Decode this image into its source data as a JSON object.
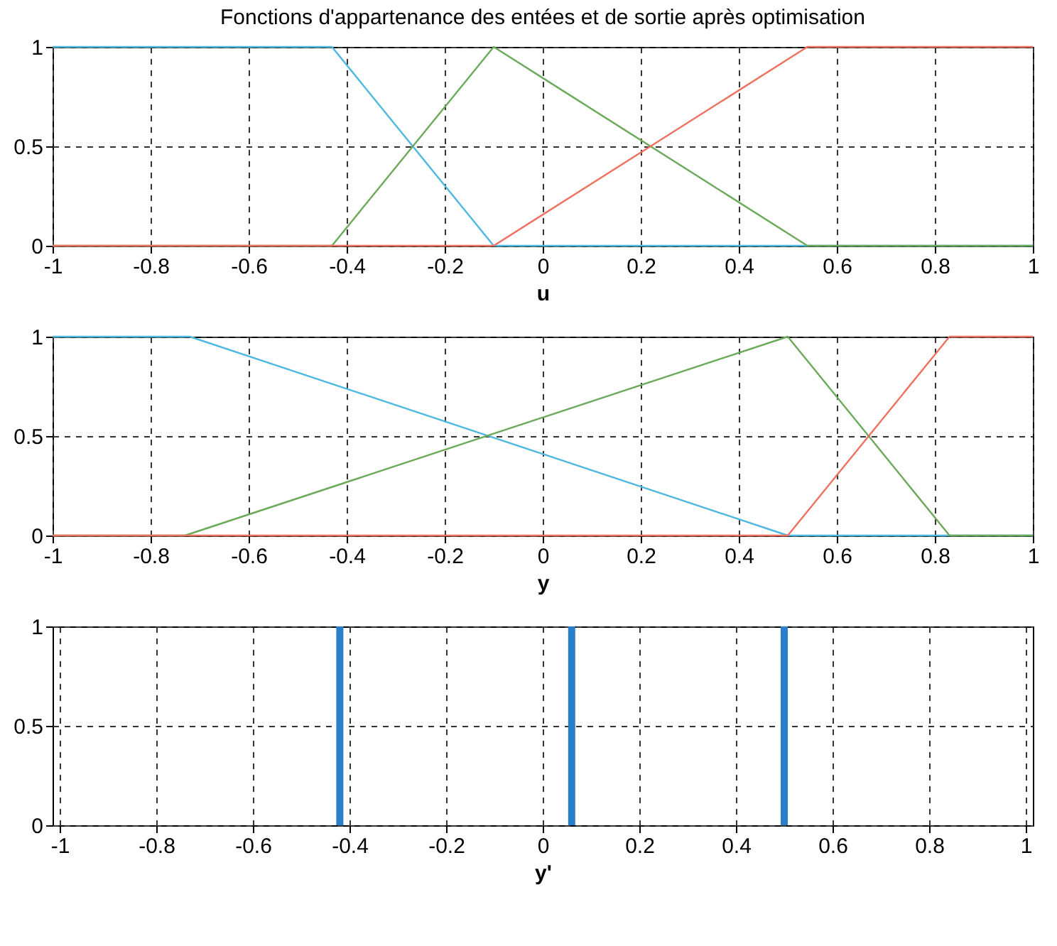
{
  "chart_data": [
    {
      "type": "line",
      "title": "Fonctions d'appartenance des entées et de sortie après optimisation",
      "xlabel": "u",
      "xlim": [
        -1,
        1
      ],
      "ylim": [
        0,
        1
      ],
      "xticks": [
        -1,
        -0.8,
        -0.6,
        -0.4,
        -0.2,
        0,
        0.2,
        0.4,
        0.6,
        0.8,
        1
      ],
      "yticks": [
        0,
        0.5,
        1
      ],
      "grid": true,
      "line_style": "solid",
      "marker": "none",
      "series": [
        {
          "color": "#4fb8e0",
          "x": [
            -1,
            -0.43,
            -0.1,
            1
          ],
          "values": [
            1,
            1,
            0,
            0
          ]
        },
        {
          "color": "#6aaa5a",
          "x": [
            -1,
            -0.43,
            -0.1,
            0.54,
            1
          ],
          "values": [
            0,
            0,
            1,
            0,
            0
          ]
        },
        {
          "color": "#f07060",
          "x": [
            -1,
            -0.1,
            0.54,
            1
          ],
          "values": [
            0,
            0,
            1,
            1
          ]
        }
      ]
    },
    {
      "type": "line",
      "xlabel": "y",
      "xlim": [
        -1,
        1
      ],
      "ylim": [
        0,
        1
      ],
      "xticks": [
        -1,
        -0.8,
        -0.6,
        -0.4,
        -0.2,
        0,
        0.2,
        0.4,
        0.6,
        0.8,
        1
      ],
      "yticks": [
        0,
        0.5,
        1
      ],
      "grid": true,
      "line_style": "solid",
      "marker": "none",
      "series": [
        {
          "color": "#4fb8e0",
          "x": [
            -1,
            -0.72,
            0.5,
            1
          ],
          "values": [
            1,
            1,
            0,
            0
          ]
        },
        {
          "color": "#6aaa5a",
          "x": [
            -1,
            -0.73,
            0.5,
            0.83,
            1
          ],
          "values": [
            0,
            0,
            1,
            0,
            0
          ]
        },
        {
          "color": "#f07060",
          "x": [
            -1,
            0.5,
            0.83,
            1
          ],
          "values": [
            0,
            0,
            1,
            1
          ]
        }
      ]
    },
    {
      "type": "bar",
      "xlabel": "y'",
      "xlim": [
        -1,
        1
      ],
      "ylim": [
        0,
        1
      ],
      "xticks": [
        -1,
        -0.8,
        -0.6,
        -0.4,
        -0.2,
        0,
        0.2,
        0.4,
        0.6,
        0.8,
        1
      ],
      "yticks": [
        0,
        0.5,
        1
      ],
      "grid": true,
      "x": [
        -0.42,
        0.06,
        0.5
      ],
      "values": [
        1,
        1,
        1
      ],
      "color": "#2a7fc9"
    }
  ]
}
